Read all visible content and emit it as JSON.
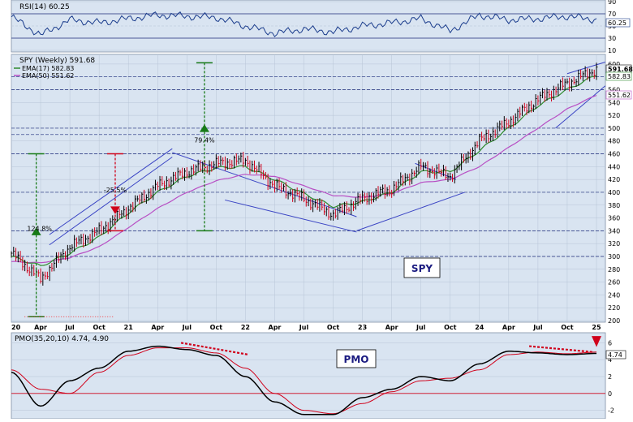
{
  "colors": {
    "panel_bg": "#d9e4f1",
    "grid": "#b7c4d6",
    "hline": "#1b2a7a",
    "up": "#000000",
    "down": "#d0021b",
    "ema_fast": "#2e8b2e",
    "ema_slow": "#b84fc4",
    "rsi": "#1a3c8c",
    "pmo": "#000000",
    "pmo_signal": "#d0021b",
    "channel": "#3a44c4",
    "green": "#177a17",
    "red": "#d0021b",
    "annot_dotted": "#ff0000"
  },
  "rsi_panel": {
    "label": "RSI(14) 60.25",
    "ticks": [
      "90",
      "70",
      "50",
      "30",
      "10"
    ],
    "last_badge": "60.25"
  },
  "price_panel": {
    "label_symbol": "SPY (Weekly) 591.68",
    "label_ema17": "EMA(17) 582.83",
    "label_ema50": "EMA(50) 551.62",
    "ticks": [
      "600",
      "580",
      "560",
      "540",
      "520",
      "500",
      "480",
      "460",
      "440",
      "420",
      "400",
      "380",
      "360",
      "340",
      "320",
      "300",
      "280",
      "260",
      "240",
      "220",
      "200"
    ],
    "badge_price": "591.68",
    "badge_ema17": "582.83",
    "badge_ema50": "551.62",
    "annotations": {
      "gain_2020": "124.8%",
      "loss_2022": "-25.5%",
      "gain_2023": "79.4%",
      "box_label": "SPY"
    }
  },
  "x_labels": [
    "20",
    "Apr",
    "Jul",
    "Oct",
    "21",
    "Apr",
    "Jul",
    "Oct",
    "22",
    "Apr",
    "Jul",
    "Oct",
    "23",
    "Apr",
    "Jul",
    "Oct",
    "24",
    "Apr",
    "Jul",
    "Oct",
    "25"
  ],
  "pmo_panel": {
    "label": "PMO(35,20,10) 4.74, 4.90",
    "ticks": [
      "6",
      "4",
      "2",
      "0",
      "-2"
    ],
    "badge": "4.74",
    "box_label": "PMO"
  },
  "chart_data": [
    {
      "type": "line",
      "title": "RSI(14) 60.25",
      "x": [
        "2020-01",
        "2020-04",
        "2020-07",
        "2020-10",
        "2021-01",
        "2021-04",
        "2021-07",
        "2021-10",
        "2022-01",
        "2022-04",
        "2022-07",
        "2022-10",
        "2023-01",
        "2023-04",
        "2023-07",
        "2023-10",
        "2024-01",
        "2024-04",
        "2024-07",
        "2024-10",
        "2025-01"
      ],
      "series": [
        {
          "name": "RSI(14)",
          "values": [
            65,
            35,
            60,
            55,
            62,
            68,
            66,
            64,
            50,
            38,
            45,
            40,
            50,
            55,
            62,
            42,
            68,
            60,
            62,
            66,
            60.25
          ]
        }
      ],
      "ylim": [
        10,
        90
      ]
    },
    {
      "type": "line",
      "title": "SPY (Weekly) 591.68",
      "x": [
        "2020-01",
        "2020-04",
        "2020-07",
        "2020-10",
        "2021-01",
        "2021-04",
        "2021-07",
        "2021-10",
        "2022-01",
        "2022-04",
        "2022-07",
        "2022-10",
        "2023-01",
        "2023-04",
        "2023-07",
        "2023-10",
        "2024-01",
        "2024-04",
        "2024-07",
        "2024-10",
        "2025-01"
      ],
      "series": [
        {
          "name": "SPY (Weekly)",
          "values": [
            305,
            265,
            315,
            340,
            375,
            410,
            432,
            445,
            450,
            410,
            390,
            365,
            390,
            405,
            440,
            425,
            480,
            510,
            545,
            570,
            591.68
          ]
        },
        {
          "name": "EMA(17)",
          "values": [
            300,
            285,
            305,
            330,
            368,
            400,
            425,
            438,
            440,
            420,
            398,
            378,
            385,
            400,
            432,
            432,
            465,
            500,
            535,
            560,
            582.83
          ]
        },
        {
          "name": "EMA(50)",
          "values": [
            292,
            290,
            298,
            315,
            345,
            375,
            400,
            418,
            428,
            425,
            410,
            395,
            392,
            398,
            415,
            420,
            440,
            470,
            500,
            530,
            551.62
          ]
        }
      ],
      "ylim": [
        200,
        610
      ],
      "annotations": [
        "124.8%",
        "-25.5%",
        "79.4%",
        "SPY"
      ]
    },
    {
      "type": "line",
      "title": "PMO(35,20,10) 4.74, 4.90",
      "x": [
        "2020-01",
        "2020-04",
        "2020-07",
        "2020-10",
        "2021-01",
        "2021-04",
        "2021-07",
        "2021-10",
        "2022-01",
        "2022-04",
        "2022-07",
        "2022-10",
        "2023-01",
        "2023-04",
        "2023-07",
        "2023-10",
        "2024-01",
        "2024-04",
        "2024-07",
        "2024-10",
        "2025-01"
      ],
      "series": [
        {
          "name": "PMO",
          "values": [
            2.5,
            -1.5,
            1.5,
            3.0,
            5.0,
            5.6,
            5.2,
            4.5,
            2.0,
            -1.0,
            -2.5,
            -2.5,
            -0.5,
            0.5,
            2.0,
            1.5,
            3.5,
            5.0,
            4.8,
            4.6,
            4.74
          ]
        },
        {
          "name": "Signal",
          "values": [
            2.8,
            0.5,
            0.0,
            2.5,
            4.5,
            5.4,
            5.4,
            4.8,
            3.0,
            0.0,
            -2.0,
            -2.4,
            -1.2,
            0.2,
            1.5,
            1.8,
            2.8,
            4.6,
            4.9,
            4.7,
            4.9
          ]
        }
      ],
      "ylim": [
        -3,
        7
      ]
    }
  ]
}
